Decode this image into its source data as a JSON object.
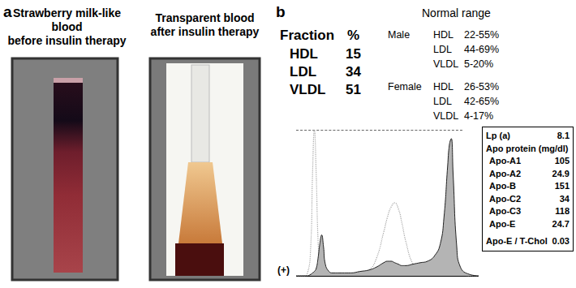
{
  "panel_a": {
    "label": "a",
    "left_title": [
      "Strawberry milk-like",
      "blood",
      "before insulin therapy"
    ],
    "right_title": [
      "Transparent blood",
      "after insulin therapy"
    ]
  },
  "panel_b": {
    "label": "b",
    "normal_range_title": "Normal range",
    "table": {
      "header": [
        "Fraction",
        "%"
      ],
      "rows": [
        [
          "HDL",
          15
        ],
        [
          "LDL",
          34
        ],
        [
          "VLDL",
          51
        ]
      ]
    },
    "normal_ranges": [
      {
        "sex": "Male",
        "rows": [
          [
            "HDL",
            "22-55%"
          ],
          [
            "LDL",
            "44-69%"
          ],
          [
            "VLDL",
            "5-20%"
          ]
        ]
      },
      {
        "sex": "Female",
        "rows": [
          [
            "HDL",
            "26-53%"
          ],
          [
            "LDL",
            "42-65%"
          ],
          [
            "VLDL",
            "4-17%"
          ]
        ]
      }
    ],
    "trace_label": "(+)",
    "apo_box": {
      "top_row": [
        "Lp (a)",
        8.1
      ],
      "heading": "Apo protein (mg/dl)",
      "rows": [
        [
          "Apo-A1",
          105
        ],
        [
          "Apo-A2",
          24.9
        ],
        [
          "Apo-B",
          151
        ],
        [
          "Apo-C2",
          34
        ],
        [
          "Apo-C3",
          118
        ],
        [
          "Apo-E",
          24.7
        ]
      ],
      "ratio_row": [
        "Apo-E / T-Chol",
        0.03
      ]
    }
  },
  "chart_data": {
    "type": "line",
    "x": [
      0,
      2,
      4,
      6,
      8,
      9,
      10,
      11,
      12,
      13,
      14,
      15,
      16,
      18,
      20,
      25,
      30,
      35,
      40,
      44,
      48,
      50,
      52,
      54,
      56,
      58,
      60,
      64,
      68,
      72,
      76,
      79,
      81,
      83,
      84,
      85,
      86,
      88,
      90,
      95,
      100
    ],
    "series": [
      {
        "type": "line",
        "color": "#a8a8a8",
        "line_style": "dotted",
        "values": [
          0,
          0,
          0,
          1,
          20,
          70,
          100,
          70,
          25,
          8,
          3,
          2,
          1,
          1,
          1,
          1,
          1,
          2,
          4,
          12,
          30,
          40,
          47,
          50,
          46,
          36,
          24,
          8,
          3,
          2,
          2,
          2,
          2,
          2,
          2,
          2,
          2,
          1,
          1,
          0,
          0
        ]
      },
      {
        "type": "area",
        "color": "#b4b4b4",
        "line_style": "solid",
        "values": [
          0,
          0,
          0,
          0,
          1,
          2,
          3,
          5,
          12,
          22,
          28,
          20,
          8,
          3,
          2,
          2,
          2,
          3,
          4,
          6,
          9,
          10,
          10,
          9,
          8,
          7,
          7,
          8,
          9,
          10,
          14,
          22,
          40,
          75,
          90,
          94,
          70,
          20,
          6,
          1,
          0
        ]
      }
    ],
    "xlim": [
      0,
      100
    ],
    "ylim": [
      0,
      100
    ],
    "grid": false,
    "tick_labels": false
  }
}
